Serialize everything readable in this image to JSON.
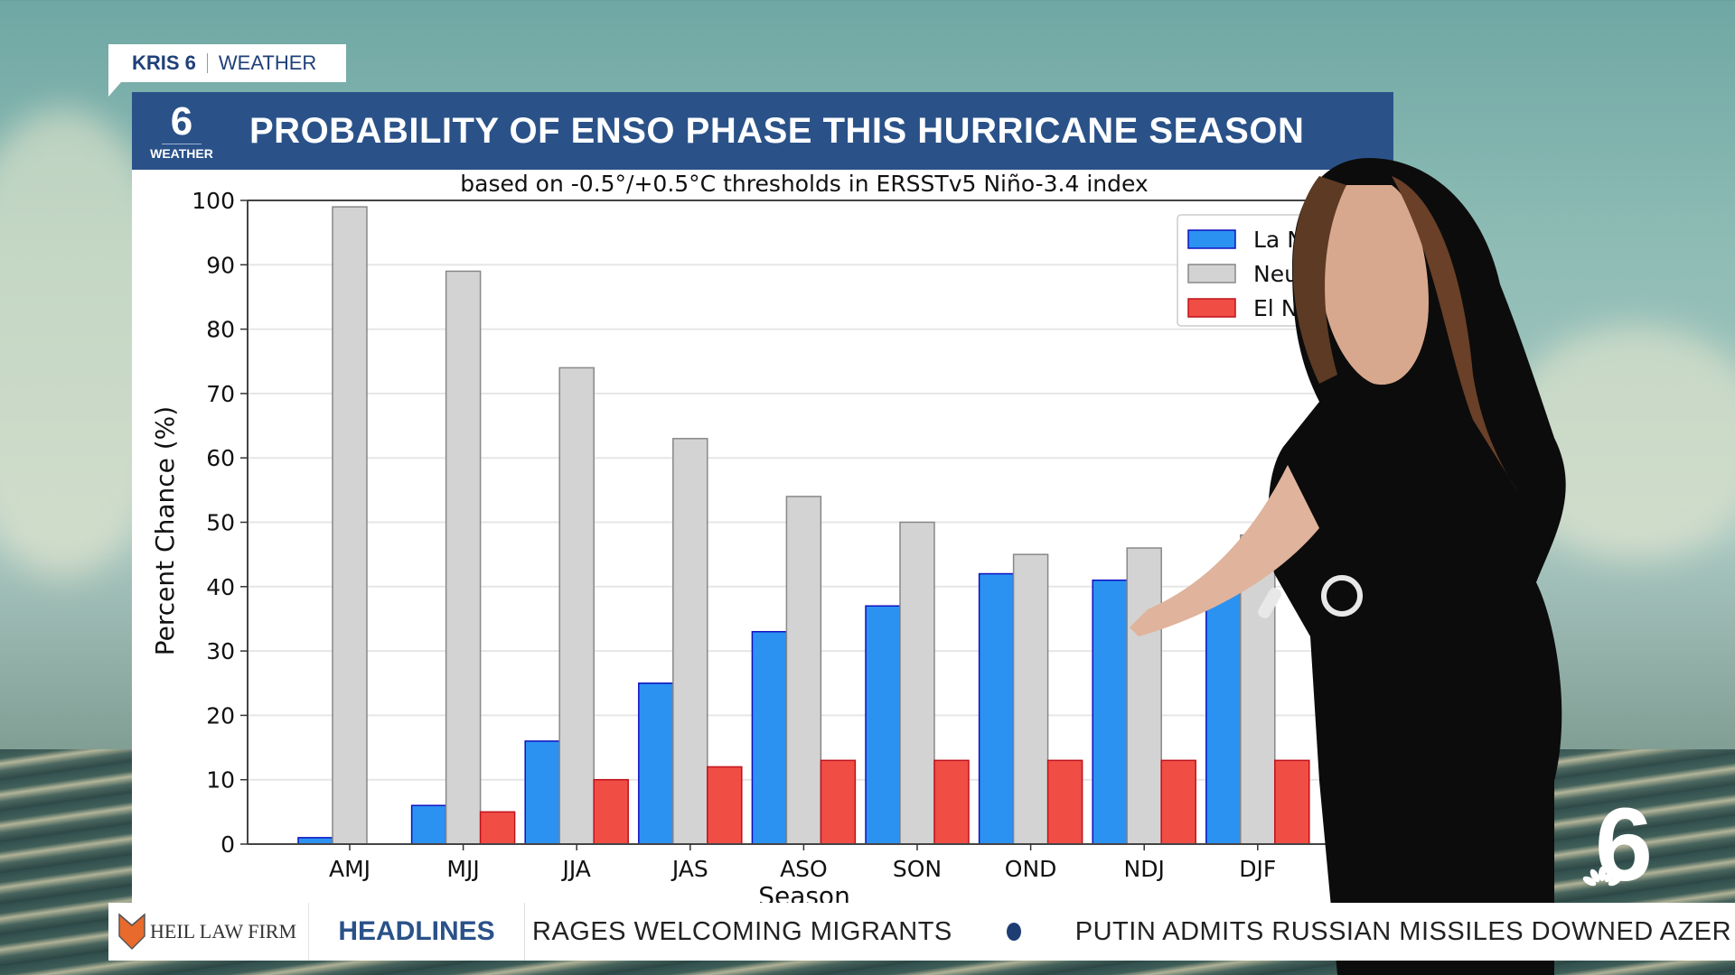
{
  "brand_tag": {
    "station": "KRIS 6",
    "section": "WEATHER"
  },
  "header": {
    "logo_number": "6",
    "logo_label": "WEATHER",
    "title": "PROBABILITY OF ENSO PHASE THIS HURRICANE SEASON"
  },
  "ticker": {
    "sponsor": "HEIL LAW FIRM",
    "label": "HEADLINES",
    "stories": [
      "RAGES WELCOMING MIGRANTS",
      "PUTIN ADMITS RUSSIAN MISSILES DOWNED AZER"
    ]
  },
  "corner_logo": {
    "number": "6"
  },
  "colors": {
    "la_nina": "#2b92f2",
    "neutral": "#d3d3d3",
    "el_nino": "#f04e45",
    "header_blue": "#2a5289"
  },
  "chart_data": {
    "type": "bar",
    "title": "based on -0.5°/+0.5°C thresholds in ERSSTv5 Niño-3.4 index",
    "xlabel": "Season",
    "ylabel": "Percent Chance (%)",
    "ylim": [
      0,
      100
    ],
    "yticks": [
      0,
      10,
      20,
      30,
      40,
      50,
      60,
      70,
      80,
      90,
      100
    ],
    "grid": true,
    "legend_position": "top-right",
    "categories": [
      "AMJ",
      "MJJ",
      "JJA",
      "JAS",
      "ASO",
      "SON",
      "OND",
      "NDJ",
      "DJF"
    ],
    "series": [
      {
        "name": "La Nina",
        "color": "#2b92f2",
        "edge": "#1010c0",
        "values": [
          1,
          6,
          16,
          25,
          33,
          37,
          42,
          41,
          39
        ]
      },
      {
        "name": "Neutral",
        "color": "#d3d3d3",
        "edge": "#888888",
        "values": [
          99,
          89,
          74,
          63,
          54,
          50,
          45,
          46,
          48
        ]
      },
      {
        "name": "El Nino",
        "color": "#f04e45",
        "edge": "#c0101a",
        "values": [
          0,
          5,
          10,
          12,
          13,
          13,
          13,
          13,
          13
        ]
      }
    ]
  }
}
